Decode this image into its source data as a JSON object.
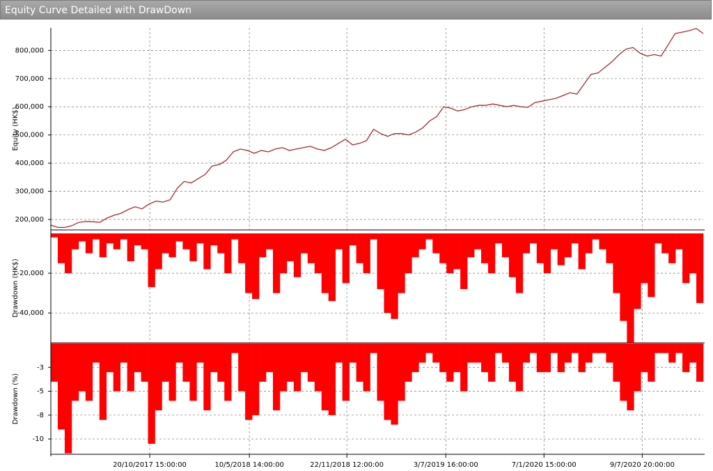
{
  "window_title": "Equity Curve Detailed with DrawDown",
  "chart_data": [
    {
      "type": "line",
      "y_label": "Equity (HK$)",
      "color": "#a52a2a",
      "grid": true,
      "xlim": [
        0,
        93
      ],
      "ylim": [
        163000,
        880000
      ],
      "yticks": [
        {
          "value": 200000,
          "label": "200,000"
        },
        {
          "value": 300000,
          "label": "300,000"
        },
        {
          "value": 400000,
          "label": "400,000"
        },
        {
          "value": 500000,
          "label": "500,000"
        },
        {
          "value": 600000,
          "label": "600,000"
        },
        {
          "value": 700000,
          "label": "700,000"
        },
        {
          "value": 800000,
          "label": "800,000"
        }
      ],
      "values": [
        180000,
        172000,
        172000,
        178000,
        190000,
        193000,
        192000,
        190000,
        205000,
        215000,
        222000,
        235000,
        245000,
        238000,
        255000,
        265000,
        262000,
        270000,
        310000,
        335000,
        330000,
        345000,
        360000,
        390000,
        395000,
        410000,
        440000,
        450000,
        445000,
        435000,
        445000,
        440000,
        450000,
        455000,
        445000,
        450000,
        455000,
        460000,
        450000,
        445000,
        455000,
        470000,
        485000,
        465000,
        470000,
        480000,
        520000,
        505000,
        495000,
        505000,
        505000,
        500000,
        510000,
        525000,
        550000,
        565000,
        600000,
        595000,
        585000,
        590000,
        600000,
        605000,
        605000,
        610000,
        605000,
        600000,
        605000,
        600000,
        598000,
        615000,
        620000,
        625000,
        630000,
        640000,
        650000,
        645000,
        680000,
        715000,
        720000,
        740000,
        760000,
        785000,
        805000,
        810000,
        790000,
        780000,
        785000,
        780000,
        820000,
        860000,
        865000,
        870000,
        878000,
        860000
      ]
    },
    {
      "type": "bar",
      "y_label": "Drawdown (HK$)",
      "color": "#ff0000",
      "grid": true,
      "xlim": [
        0,
        93
      ],
      "ylim": [
        -55000,
        0
      ],
      "yticks": [
        {
          "value": -20000,
          "label": "-20,000"
        },
        {
          "value": -40000,
          "label": "-40,000"
        }
      ],
      "values": [
        -2000,
        -15000,
        -20000,
        -8000,
        -4000,
        -10000,
        -3000,
        -12000,
        -5000,
        -8000,
        -3000,
        -14000,
        -6000,
        -8000,
        -27000,
        -18000,
        -10000,
        -12000,
        -4000,
        -8000,
        -14000,
        -5000,
        -18000,
        -6000,
        -10000,
        -20000,
        -3000,
        -15000,
        -30000,
        -33000,
        -12000,
        -8000,
        -30000,
        -20000,
        -14000,
        -22000,
        -10000,
        -15000,
        -20000,
        -30000,
        -34000,
        -8000,
        -25000,
        -6000,
        -15000,
        -20000,
        -3000,
        -28000,
        -40000,
        -43000,
        -30000,
        -20000,
        -12000,
        -8000,
        -3000,
        -10000,
        -15000,
        -20000,
        -18000,
        -28000,
        -12000,
        -8000,
        -15000,
        -20000,
        -5000,
        -12000,
        -22000,
        -30000,
        -10000,
        -5000,
        -15000,
        -20000,
        -8000,
        -16000,
        -12000,
        -5000,
        -18000,
        -10000,
        -3000,
        -8000,
        -15000,
        -30000,
        -44000,
        -55000,
        -38000,
        -25000,
        -32000,
        -5000,
        -10000,
        -15000,
        -8000,
        -25000,
        -20000,
        -35000
      ]
    },
    {
      "type": "bar",
      "y_label": "Drawdown (%)",
      "color": "#ff0000",
      "grid": true,
      "xlim": [
        0,
        93
      ],
      "ylim": [
        -11.6,
        0
      ],
      "yticks": [
        {
          "value": -2.5,
          "label": "-3"
        },
        {
          "value": -5,
          "label": "-5"
        },
        {
          "value": -7.5,
          "label": "-8"
        },
        {
          "value": -10,
          "label": "-10"
        }
      ],
      "xticks": [
        {
          "value": 14.1,
          "label": "20/10/2017 15:00:00"
        },
        {
          "value": 28.3,
          "label": "10/5/2018 14:00:00"
        },
        {
          "value": 42.2,
          "label": "22/11/2018 12:00:00"
        },
        {
          "value": 56.3,
          "label": "3/7/2019 16:00:00"
        },
        {
          "value": 70.3,
          "label": "7/1/2020 15:00:00"
        },
        {
          "value": 84.3,
          "label": "9/7/2020 20:00:00"
        }
      ],
      "values": [
        -4,
        -9,
        -11.5,
        -6,
        -5,
        -6,
        -2,
        -8,
        -3,
        -5,
        -2,
        -5,
        -3,
        -4,
        -10.5,
        -7,
        -4,
        -6,
        -2,
        -4,
        -6,
        -2,
        -7,
        -3,
        -4,
        -6,
        -1,
        -5,
        -8,
        -7.5,
        -4,
        -3,
        -7,
        -5,
        -4,
        -5,
        -3,
        -4,
        -5,
        -7,
        -7.5,
        -2,
        -6,
        -2,
        -4,
        -5,
        -1,
        -6,
        -8,
        -8.5,
        -6,
        -4,
        -3,
        -2,
        -1,
        -2,
        -3,
        -4,
        -3,
        -5,
        -2,
        -2,
        -3,
        -4,
        -1,
        -2,
        -4,
        -5,
        -2,
        -1,
        -3,
        -3,
        -1,
        -3,
        -2,
        -1,
        -3,
        -2,
        -1,
        -1,
        -2,
        -4,
        -6,
        -7,
        -5,
        -3,
        -4,
        -1,
        -1,
        -2,
        -1,
        -3,
        -2,
        -4
      ]
    }
  ]
}
